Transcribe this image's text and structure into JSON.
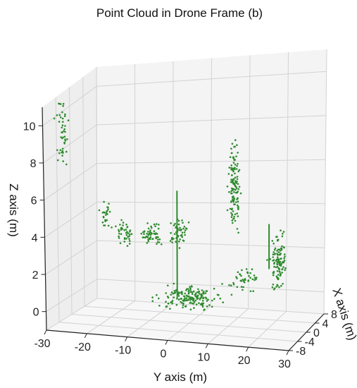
{
  "chart_data": {
    "type": "scatter",
    "title": "Point Cloud in Drone Frame (b)",
    "xlabel": "X axis (m)",
    "ylabel": "Y axis (m)",
    "zlabel": "Z axis (m)",
    "xlim": [
      -8,
      8
    ],
    "ylim": [
      -30,
      30
    ],
    "zlim": [
      -1,
      11
    ],
    "x_ticks": [
      "-8",
      "-4",
      "0",
      "4",
      "8"
    ],
    "y_ticks": [
      "-30",
      "-20",
      "-10",
      "0",
      "10",
      "20",
      "30"
    ],
    "z_ticks": [
      "0",
      "2",
      "4",
      "6",
      "8",
      "10"
    ],
    "grid": true,
    "point_color": "#2e8b2e",
    "series": [
      {
        "clusters": [
          {
            "x": -7,
            "y": -26,
            "z": 9.5,
            "spread": [
              0.6,
              1.2,
              1.6
            ],
            "n": 45
          },
          {
            "x": 6,
            "y": -26,
            "z": 3.6,
            "spread": [
              1.2,
              1.0,
              0.6
            ],
            "n": 25
          },
          {
            "x": 7,
            "y": -22,
            "z": 2.6,
            "spread": [
              1.0,
              2.0,
              0.5
            ],
            "n": 40
          },
          {
            "x": 7,
            "y": -15,
            "z": 2.5,
            "spread": [
              1.0,
              2.5,
              0.5
            ],
            "n": 55
          },
          {
            "x": 7,
            "y": -8,
            "z": 2.6,
            "spread": [
              1.0,
              2.0,
              0.6
            ],
            "n": 55
          },
          {
            "x": -7,
            "y": 16,
            "z": 6.6,
            "spread": [
              0.6,
              1.2,
              1.8
            ],
            "n": 130
          },
          {
            "x": 0,
            "y": 0,
            "z": 0.3,
            "spread": [
              4.5,
              7.0,
              0.35
            ],
            "n": 170
          },
          {
            "x": 5,
            "y": 11,
            "z": 0.8,
            "spread": [
              1.5,
              3.0,
              0.5
            ],
            "n": 40
          },
          {
            "x": 3,
            "y": 21,
            "z": 1.8,
            "spread": [
              2.0,
              1.5,
              1.2
            ],
            "n": 110
          }
        ],
        "lines": [
          {
            "x": 0,
            "y": -3,
            "z0": 0.2,
            "z1": 5.5
          },
          {
            "x": -6,
            "y": 24,
            "z0": 2.5,
            "z1": 4.6
          }
        ]
      }
    ]
  }
}
